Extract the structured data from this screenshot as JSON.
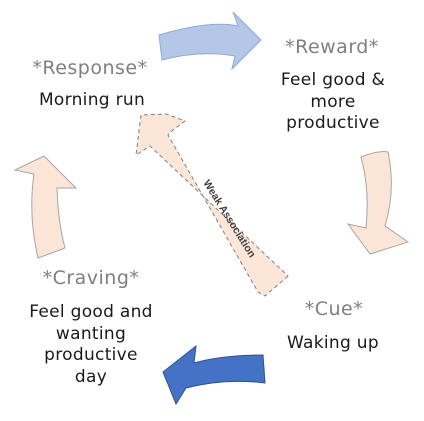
{
  "diagram": {
    "stages": {
      "response": {
        "title": "*Response*",
        "description": [
          "Morning run"
        ]
      },
      "reward": {
        "title": "*Reward*",
        "description": [
          "Feel good &",
          "more",
          "productive"
        ]
      },
      "cue": {
        "title": "*Cue*",
        "description": [
          "Waking up"
        ]
      },
      "craving": {
        "title": "*Craving*",
        "description": [
          "Feel good and",
          "wanting",
          "productive",
          "day"
        ]
      }
    },
    "connector": {
      "label": "Weak Association"
    },
    "colors": {
      "arrow_top": "#b4c7e7",
      "arrow_bottom": "#4472c4",
      "arrow_peach": "#fbe5d6",
      "title_gray": "#7f7f7f",
      "text_dark": "#1a1a1a"
    }
  }
}
